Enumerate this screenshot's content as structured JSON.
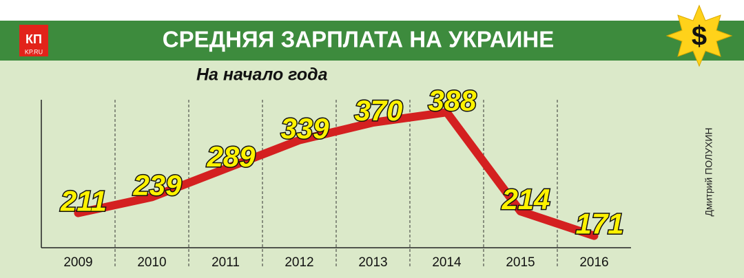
{
  "chart_data": {
    "type": "line",
    "title": "СРЕДНЯЯ ЗАРПЛАТА НА УКРАИНЕ",
    "subtitle": "На начало года",
    "credit": "Дмитрий ПОЛУХИН",
    "logo": "КП",
    "logo_site": "KP.RU",
    "badge": "$",
    "categories": [
      "2009",
      "2010",
      "2011",
      "2012",
      "2013",
      "2014",
      "2015",
      "2016"
    ],
    "values": [
      211,
      239,
      289,
      339,
      370,
      388,
      214,
      171
    ],
    "color": "#d42020",
    "ylim": [
      150,
      410
    ],
    "grid": true
  }
}
